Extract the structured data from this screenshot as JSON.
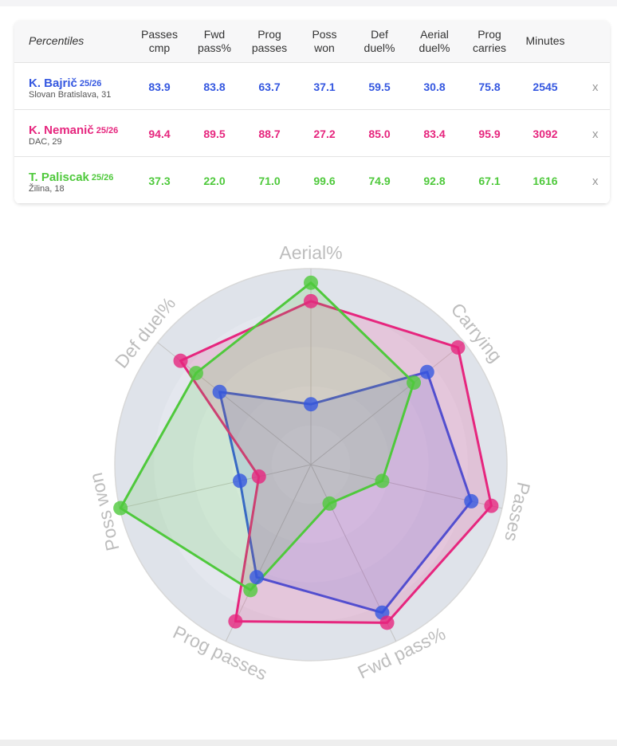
{
  "table": {
    "header_title": "Percentiles",
    "columns": [
      [
        "Passes",
        "cmp"
      ],
      [
        "Fwd",
        "pass%"
      ],
      [
        "Prog",
        "passes"
      ],
      [
        "Poss",
        "won"
      ],
      [
        "Def",
        "duel%"
      ],
      [
        "Aerial",
        "duel%"
      ],
      [
        "Prog",
        "carries"
      ],
      [
        "Minutes"
      ]
    ],
    "rows": [
      {
        "name": "K. Bajrič",
        "season": "25/26",
        "info": "Slovan Bratislava, 31",
        "color": "#3457e0",
        "cells": [
          "83.9",
          "83.8",
          "63.7",
          "37.1",
          "59.5",
          "30.8",
          "75.8",
          "2545"
        ],
        "remove": "x"
      },
      {
        "name": "K. Nemanič",
        "season": "25/26",
        "info": "DAC, 29",
        "color": "#e6267e",
        "cells": [
          "94.4",
          "89.5",
          "88.7",
          "27.2",
          "85.0",
          "83.4",
          "95.9",
          "3092"
        ],
        "remove": "x"
      },
      {
        "name": "T. Paliscak",
        "season": "25/26",
        "info": "Žilina, 18",
        "color": "#4fc93c",
        "cells": [
          "37.3",
          "22.0",
          "71.0",
          "99.6",
          "74.9",
          "92.8",
          "67.1",
          "1616"
        ],
        "remove": "x"
      }
    ]
  },
  "chart_data": {
    "type": "radar",
    "categories": [
      "Aerial%",
      "Carrying",
      "Passes",
      "Fwd pass%",
      "Prog passes",
      "Poss won",
      "Def duel%"
    ],
    "rlim": [
      0,
      100
    ],
    "rticks": [
      20,
      40,
      60,
      80,
      100
    ],
    "series": [
      {
        "color": "#3457e0",
        "values": [
          30.8,
          75.8,
          83.9,
          83.8,
          63.7,
          37.1,
          59.5
        ]
      },
      {
        "color": "#e6267e",
        "values": [
          83.4,
          95.9,
          94.4,
          89.5,
          88.7,
          27.2,
          85.0
        ]
      },
      {
        "color": "#4fc93c",
        "values": [
          92.8,
          67.1,
          37.3,
          22.0,
          71.0,
          99.6,
          74.9
        ]
      }
    ]
  }
}
